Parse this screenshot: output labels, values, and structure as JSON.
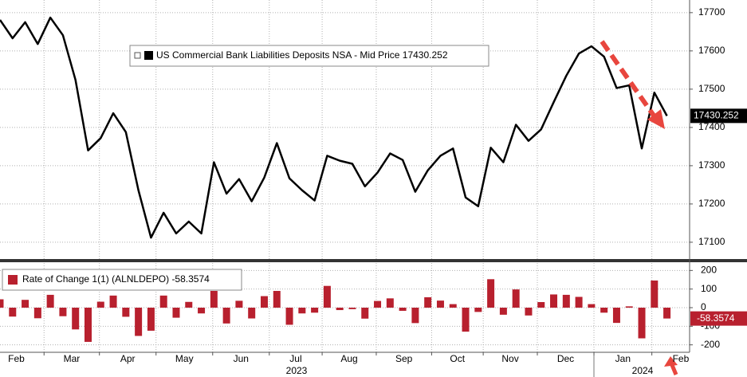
{
  "chart_data": [
    {
      "type": "line",
      "series": [
        {
          "name": "US Commercial Bank Liabilities Deposits NSA - Mid Price",
          "color": "#000000",
          "values": [
            17681,
            17633,
            17675,
            17618,
            17687,
            17641,
            17524,
            17340,
            17372,
            17437,
            17388,
            17236,
            17112,
            17177,
            17123,
            17154,
            17123,
            17309,
            17227,
            17265,
            17207,
            17269,
            17359,
            17267,
            17236,
            17209,
            17326,
            17313,
            17305,
            17246,
            17282,
            17332,
            17315,
            17232,
            17288,
            17326,
            17345,
            17217,
            17194,
            17347,
            17309,
            17407,
            17365,
            17395,
            17466,
            17535,
            17593,
            17612,
            17585,
            17503,
            17510,
            17345,
            17491,
            17430.252
          ]
        }
      ],
      "xlim": [
        0,
        54.8
      ],
      "ylim": [
        17054,
        17733
      ],
      "yticks": [
        17100,
        17200,
        17300,
        17400,
        17500,
        17600,
        17700
      ],
      "grid": true
    },
    {
      "type": "bar",
      "series": [
        {
          "name": "Rate of Change 1(1) (ALNLDEPO)",
          "color": "#b8202e",
          "values": [
            45,
            -48,
            42,
            -57,
            69,
            -46,
            -117,
            -184,
            32,
            65,
            -49,
            -152,
            -124,
            65,
            -54,
            31,
            -31,
            90,
            -85,
            37,
            -58,
            62,
            90,
            -92,
            -31,
            -27,
            117,
            -13,
            -8,
            -59,
            36,
            50,
            -17,
            -83,
            56,
            38,
            19,
            -129,
            -23,
            153,
            -38,
            98,
            -42,
            30,
            71,
            69,
            58,
            19,
            -27,
            -82,
            7,
            -165,
            146,
            -58.3574
          ]
        }
      ],
      "xlim": [
        0,
        54.8
      ],
      "ylim": [
        -240,
        240
      ],
      "yticks": [
        200,
        100,
        0,
        -100,
        -200
      ],
      "grid": true,
      "xticks": [
        {
          "value": -0.9,
          "label": "Feb"
        },
        {
          "value": 3.5,
          "label": "Mar"
        },
        {
          "value": 7.9,
          "label": "Apr"
        },
        {
          "value": 12.4,
          "label": "May"
        },
        {
          "value": 16.9,
          "label": "Jun"
        },
        {
          "value": 21.4,
          "label": "Jul"
        },
        {
          "value": 25.6,
          "label": "Aug"
        },
        {
          "value": 29.9,
          "label": "Sep"
        },
        {
          "value": 34.3,
          "label": "Oct"
        },
        {
          "value": 38.4,
          "label": "Nov"
        },
        {
          "value": 42.7,
          "label": "Dec"
        },
        {
          "value": 47.2,
          "label": "Jan"
        },
        {
          "value": 51.8,
          "label": "Feb"
        }
      ],
      "year_labels": [
        "2023",
        "2024"
      ]
    }
  ]
}
